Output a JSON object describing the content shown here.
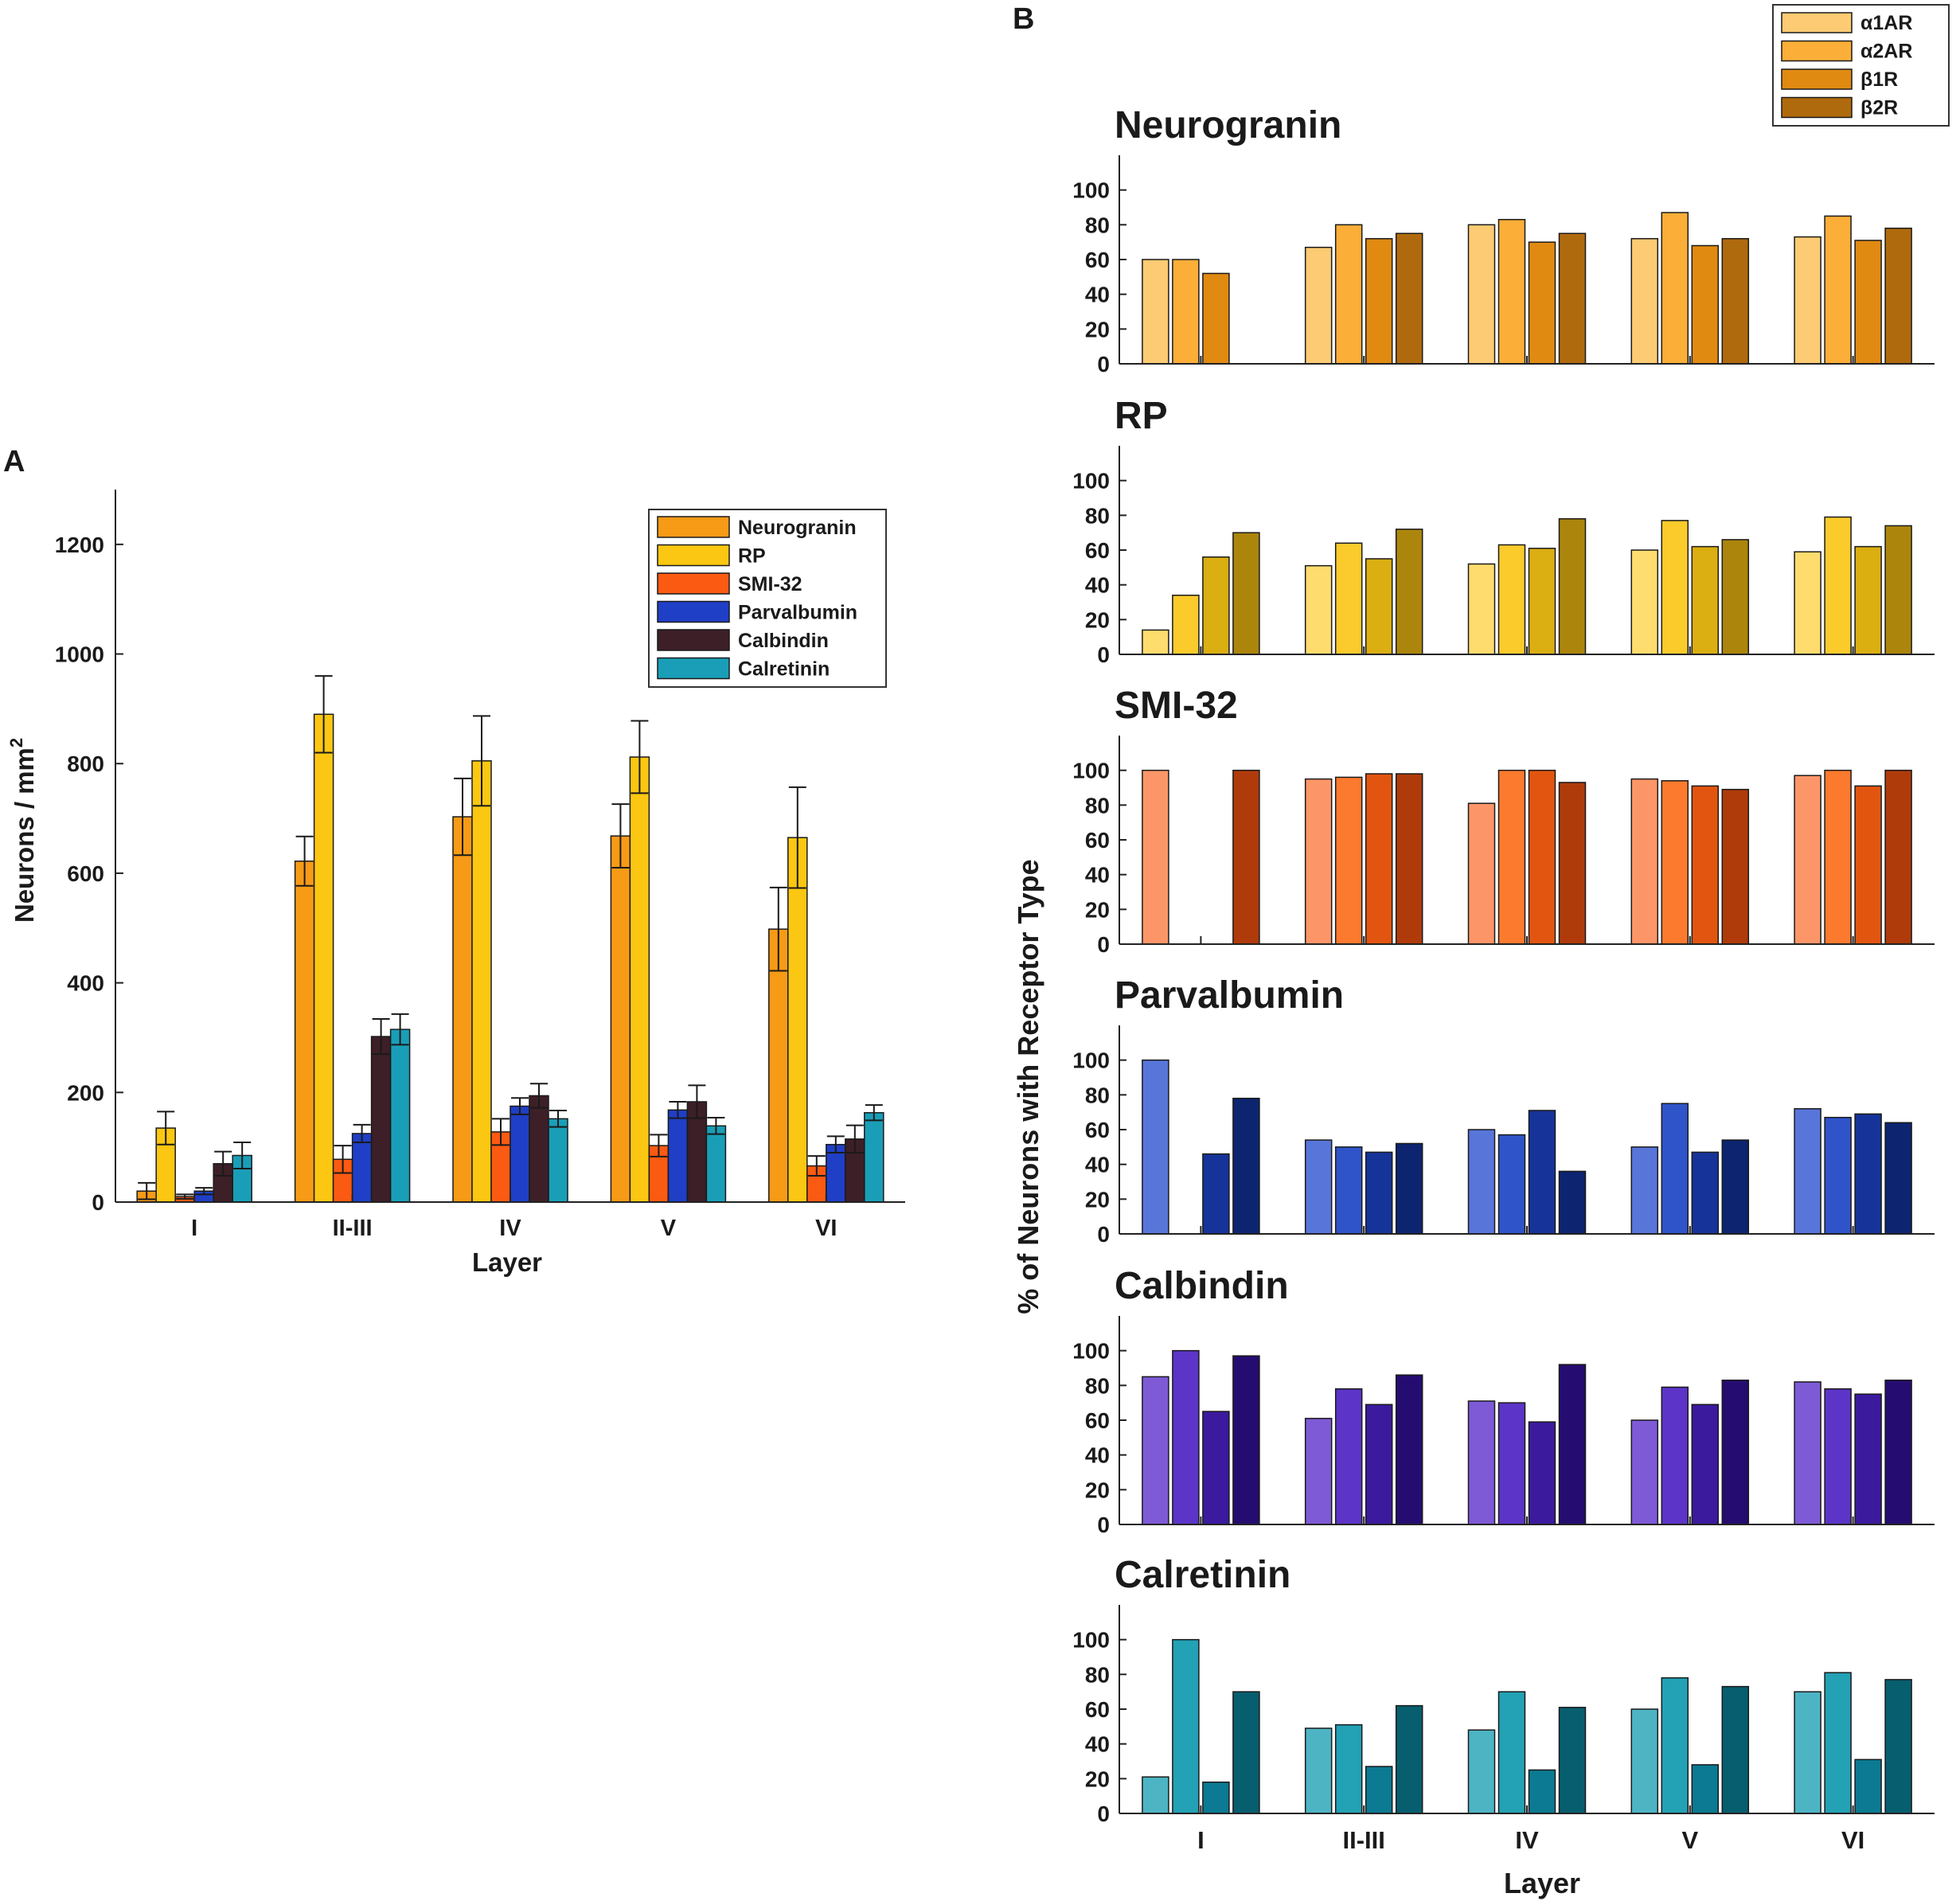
{
  "panel_labels": {
    "a": "A",
    "b": "B"
  },
  "chart_data": [
    {
      "id": "A",
      "type": "bar",
      "title": "",
      "xlabel": "Layer",
      "ylabel": "Neurons / mm²",
      "ylabel_main": "Neurons / mm",
      "ylabel_sup": "2",
      "ylim": [
        0,
        1300
      ],
      "yticks": [
        0,
        200,
        400,
        600,
        800,
        1000,
        1200
      ],
      "categories": [
        "I",
        "II-III",
        "IV",
        "V",
        "VI"
      ],
      "legend_position": "top-right",
      "series": [
        {
          "name": "Neurogranin",
          "color": "#F79A16",
          "values": [
            20,
            622,
            703,
            668,
            498
          ],
          "errors": [
            15,
            45,
            70,
            58,
            76
          ]
        },
        {
          "name": "RP",
          "color": "#FBC712",
          "values": [
            135,
            890,
            805,
            812,
            665
          ],
          "errors": [
            30,
            70,
            82,
            66,
            92
          ]
        },
        {
          "name": "SMI-32",
          "color": "#FB5A12",
          "values": [
            10,
            78,
            128,
            103,
            66
          ],
          "errors": [
            4,
            25,
            24,
            20,
            18
          ]
        },
        {
          "name": "Parvalbumin",
          "color": "#1F3FC6",
          "values": [
            20,
            125,
            175,
            168,
            105
          ],
          "errors": [
            6,
            16,
            15,
            15,
            15
          ]
        },
        {
          "name": "Calbindin",
          "color": "#3D1F27",
          "values": [
            70,
            302,
            194,
            183,
            115
          ],
          "errors": [
            22,
            32,
            22,
            30,
            25
          ]
        },
        {
          "name": "Calretinin",
          "color": "#1A9EB8",
          "values": [
            85,
            315,
            152,
            139,
            163
          ],
          "errors": [
            24,
            28,
            15,
            15,
            14
          ]
        }
      ]
    },
    {
      "id": "B",
      "type": "bar",
      "title": "",
      "xlabel": "Layer",
      "ylabel": "% of Neurons with Receptor Type",
      "ylim": [
        0,
        120
      ],
      "yticks": [
        0,
        20,
        40,
        60,
        80,
        100
      ],
      "categories": [
        "I",
        "II-III",
        "IV",
        "V",
        "VI"
      ],
      "legend_position": "top-right",
      "legend": [
        "α1AR",
        "α2AR",
        "β1R",
        "β2R"
      ],
      "legend_colors": [
        "#FCCB73",
        "#FBAE38",
        "#E08A12",
        "#B06A0E"
      ],
      "subplots": [
        {
          "title": "Neurogranin",
          "colors": [
            "#FCCB73",
            "#FBAE38",
            "#E08A12",
            "#B06A0E"
          ],
          "series": [
            {
              "name": "α1AR",
              "values": [
                60,
                67,
                80,
                72,
                73
              ]
            },
            {
              "name": "α2AR",
              "values": [
                60,
                80,
                83,
                87,
                85
              ]
            },
            {
              "name": "β1R",
              "values": [
                52,
                72,
                70,
                68,
                71
              ]
            },
            {
              "name": "β2R",
              "values": [
                0,
                75,
                75,
                72,
                78
              ]
            }
          ]
        },
        {
          "title": "RP",
          "colors": [
            "#FEDC6E",
            "#FBCB2C",
            "#DBAE12",
            "#AC850C"
          ],
          "series": [
            {
              "name": "α1AR",
              "values": [
                14,
                51,
                52,
                60,
                59
              ]
            },
            {
              "name": "α2AR",
              "values": [
                34,
                64,
                63,
                77,
                79
              ]
            },
            {
              "name": "β1R",
              "values": [
                56,
                55,
                61,
                62,
                62
              ]
            },
            {
              "name": "β2R",
              "values": [
                70,
                72,
                78,
                66,
                74
              ]
            }
          ]
        },
        {
          "title": "SMI-32",
          "colors": [
            "#FC9668",
            "#FC7A2E",
            "#E25511",
            "#AF3B0B"
          ],
          "series": [
            {
              "name": "α1AR",
              "values": [
                100,
                95,
                81,
                95,
                97
              ]
            },
            {
              "name": "α2AR",
              "values": [
                0,
                96,
                100,
                94,
                100
              ]
            },
            {
              "name": "β1R",
              "values": [
                0,
                98,
                100,
                91,
                91
              ]
            },
            {
              "name": "β2R",
              "values": [
                100,
                98,
                93,
                89,
                100
              ]
            }
          ]
        },
        {
          "title": "Parvalbumin",
          "colors": [
            "#5875D9",
            "#2F54C9",
            "#163399",
            "#0D2470"
          ],
          "series": [
            {
              "name": "α1AR",
              "values": [
                100,
                54,
                60,
                50,
                72
              ]
            },
            {
              "name": "α2AR",
              "values": [
                0,
                50,
                57,
                75,
                67
              ]
            },
            {
              "name": "β1R",
              "values": [
                46,
                47,
                71,
                47,
                69
              ]
            },
            {
              "name": "β2R",
              "values": [
                78,
                52,
                36,
                54,
                64
              ]
            }
          ]
        },
        {
          "title": "Calbindin",
          "colors": [
            "#7E5AD6",
            "#5C34C7",
            "#3B1A9E",
            "#250C70"
          ],
          "series": [
            {
              "name": "α1AR",
              "values": [
                85,
                61,
                71,
                60,
                82
              ]
            },
            {
              "name": "α2AR",
              "values": [
                100,
                78,
                70,
                79,
                78
              ]
            },
            {
              "name": "β1R",
              "values": [
                65,
                69,
                59,
                69,
                75
              ]
            },
            {
              "name": "β2R",
              "values": [
                97,
                86,
                92,
                83,
                83
              ]
            }
          ]
        },
        {
          "title": "Calretinin",
          "colors": [
            "#4DB4C4",
            "#23A1B5",
            "#0C7A92",
            "#075E6E"
          ],
          "series": [
            {
              "name": "α1AR",
              "values": [
                21,
                49,
                48,
                60,
                70
              ]
            },
            {
              "name": "α2AR",
              "values": [
                100,
                51,
                70,
                78,
                81
              ]
            },
            {
              "name": "β1R",
              "values": [
                18,
                27,
                25,
                28,
                31
              ]
            },
            {
              "name": "β2R",
              "values": [
                70,
                62,
                61,
                73,
                77
              ]
            }
          ]
        }
      ]
    }
  ]
}
